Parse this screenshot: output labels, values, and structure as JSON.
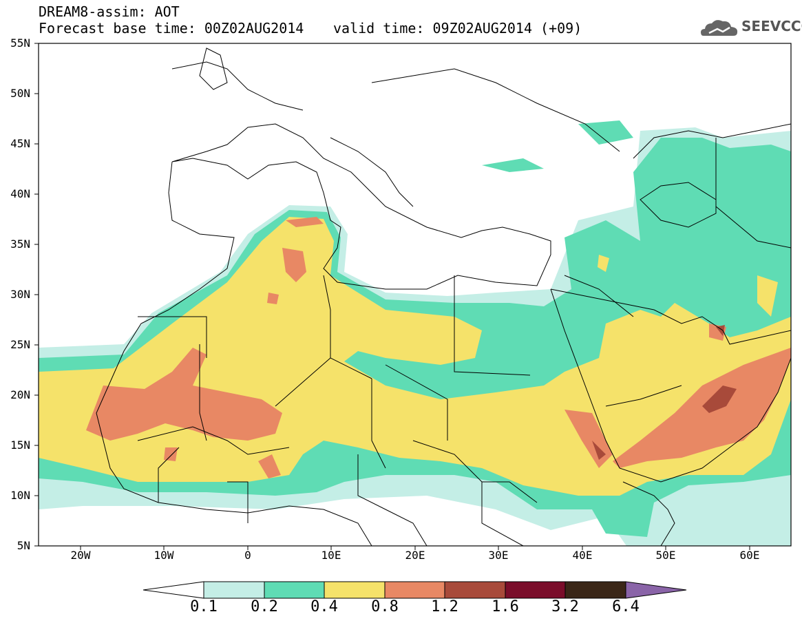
{
  "header": {
    "title": "DREAM8-assim: AOT",
    "base_time": "Forecast base time: 00Z02AUG2014",
    "valid_time": "valid time: 09Z02AUG2014 (+09)",
    "logo_text": "SEEVCCC"
  },
  "map": {
    "lon_range": [
      -25,
      65
    ],
    "lat_range": [
      5,
      55
    ],
    "lat_ticks": [
      "55N",
      "50N",
      "45N",
      "40N",
      "35N",
      "30N",
      "25N",
      "20N",
      "15N",
      "10N",
      "5N"
    ],
    "lon_ticks": [
      "20W",
      "10W",
      "0",
      "10E",
      "20E",
      "30E",
      "40E",
      "50E",
      "60E"
    ]
  },
  "colorbar": {
    "labels": [
      "0.1",
      "0.2",
      "0.4",
      "0.8",
      "1.2",
      "1.6",
      "3.2",
      "6.4"
    ],
    "colors": [
      "#ffffff",
      "#c4eee6",
      "#5fdcb4",
      "#f5e26a",
      "#e88864",
      "#a84a3a",
      "#7a0d2a",
      "#3a2617",
      "#8a64a8"
    ]
  }
}
